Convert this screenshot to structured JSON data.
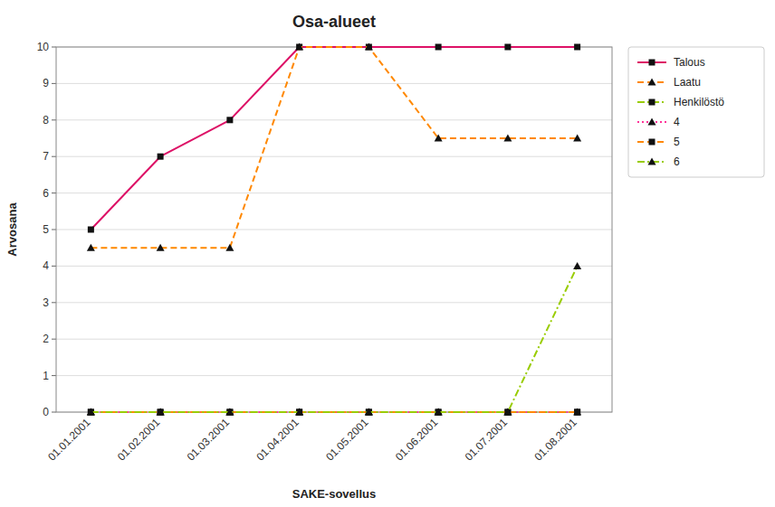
{
  "chart_data": {
    "type": "line",
    "title": "Osa-alueet",
    "xlabel": "SAKE-sovellus",
    "ylabel": "Arvosana",
    "categories": [
      "01.01.2001",
      "01.02.2001",
      "01.03.2001",
      "01.04.2001",
      "01.05.2001",
      "01.06.2001",
      "01.07.2001",
      "01.08.2001"
    ],
    "series": [
      {
        "name": "Talous",
        "color": "#dd1166",
        "line_style": "solid",
        "marker": "square",
        "values": [
          5,
          7,
          8,
          10,
          10,
          10,
          10,
          10
        ]
      },
      {
        "name": "Laatu",
        "color": "#ff8800",
        "line_style": "dashed",
        "marker": "triangle",
        "values": [
          4.5,
          4.5,
          4.5,
          10,
          10,
          7.5,
          7.5,
          7.5
        ]
      },
      {
        "name": "Henkilöstö",
        "color": "#99cc00",
        "line_style": "dashdot",
        "marker": "square",
        "values": [
          0,
          0,
          0,
          0,
          0,
          0,
          0,
          0
        ]
      },
      {
        "name": "4",
        "color": "#ff3399",
        "line_style": "dotted",
        "marker": "triangle",
        "values": [
          0,
          0,
          0,
          0,
          0,
          0,
          0,
          0
        ]
      },
      {
        "name": "5",
        "color": "#ff8800",
        "line_style": "dashed",
        "marker": "square",
        "values": [
          0,
          0,
          0,
          0,
          0,
          0,
          0,
          0
        ]
      },
      {
        "name": "6",
        "color": "#99cc00",
        "line_style": "dashdot",
        "marker": "triangle",
        "values": [
          0,
          0,
          0,
          0,
          0,
          0,
          0,
          4
        ]
      }
    ],
    "ylim": [
      0,
      10
    ],
    "yticks": [
      0,
      1,
      2,
      3,
      4,
      5,
      6,
      7,
      8,
      9,
      10
    ],
    "grid": true,
    "legend": "right"
  }
}
